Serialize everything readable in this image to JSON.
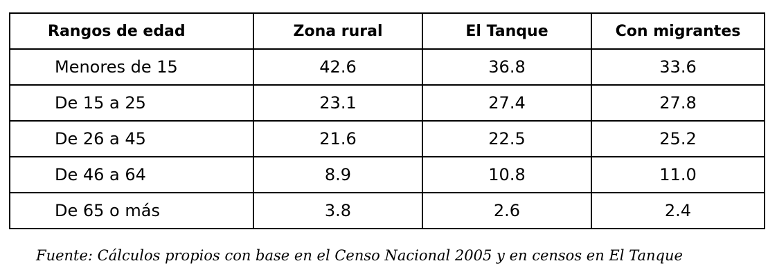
{
  "table": {
    "headers": [
      "Rangos de edad",
      "Zona rural",
      "El Tanque",
      "Con migrantes"
    ],
    "rows": [
      [
        "Menores de 15",
        "42.6",
        "36.8",
        "33.6"
      ],
      [
        "De 15 a 25",
        "23.1",
        "27.4",
        "27.8"
      ],
      [
        "De 26 a 45",
        "21.6",
        "22.5",
        "25.2"
      ],
      [
        "De 46 a 64",
        "8.9",
        "10.8",
        "11.0"
      ],
      [
        "De 65 o más",
        "3.8",
        "2.6",
        "2.4"
      ]
    ]
  },
  "source": "Fuente: Cálculos propios con base en el Censo Nacional 2005 y en censos en El Tanque"
}
